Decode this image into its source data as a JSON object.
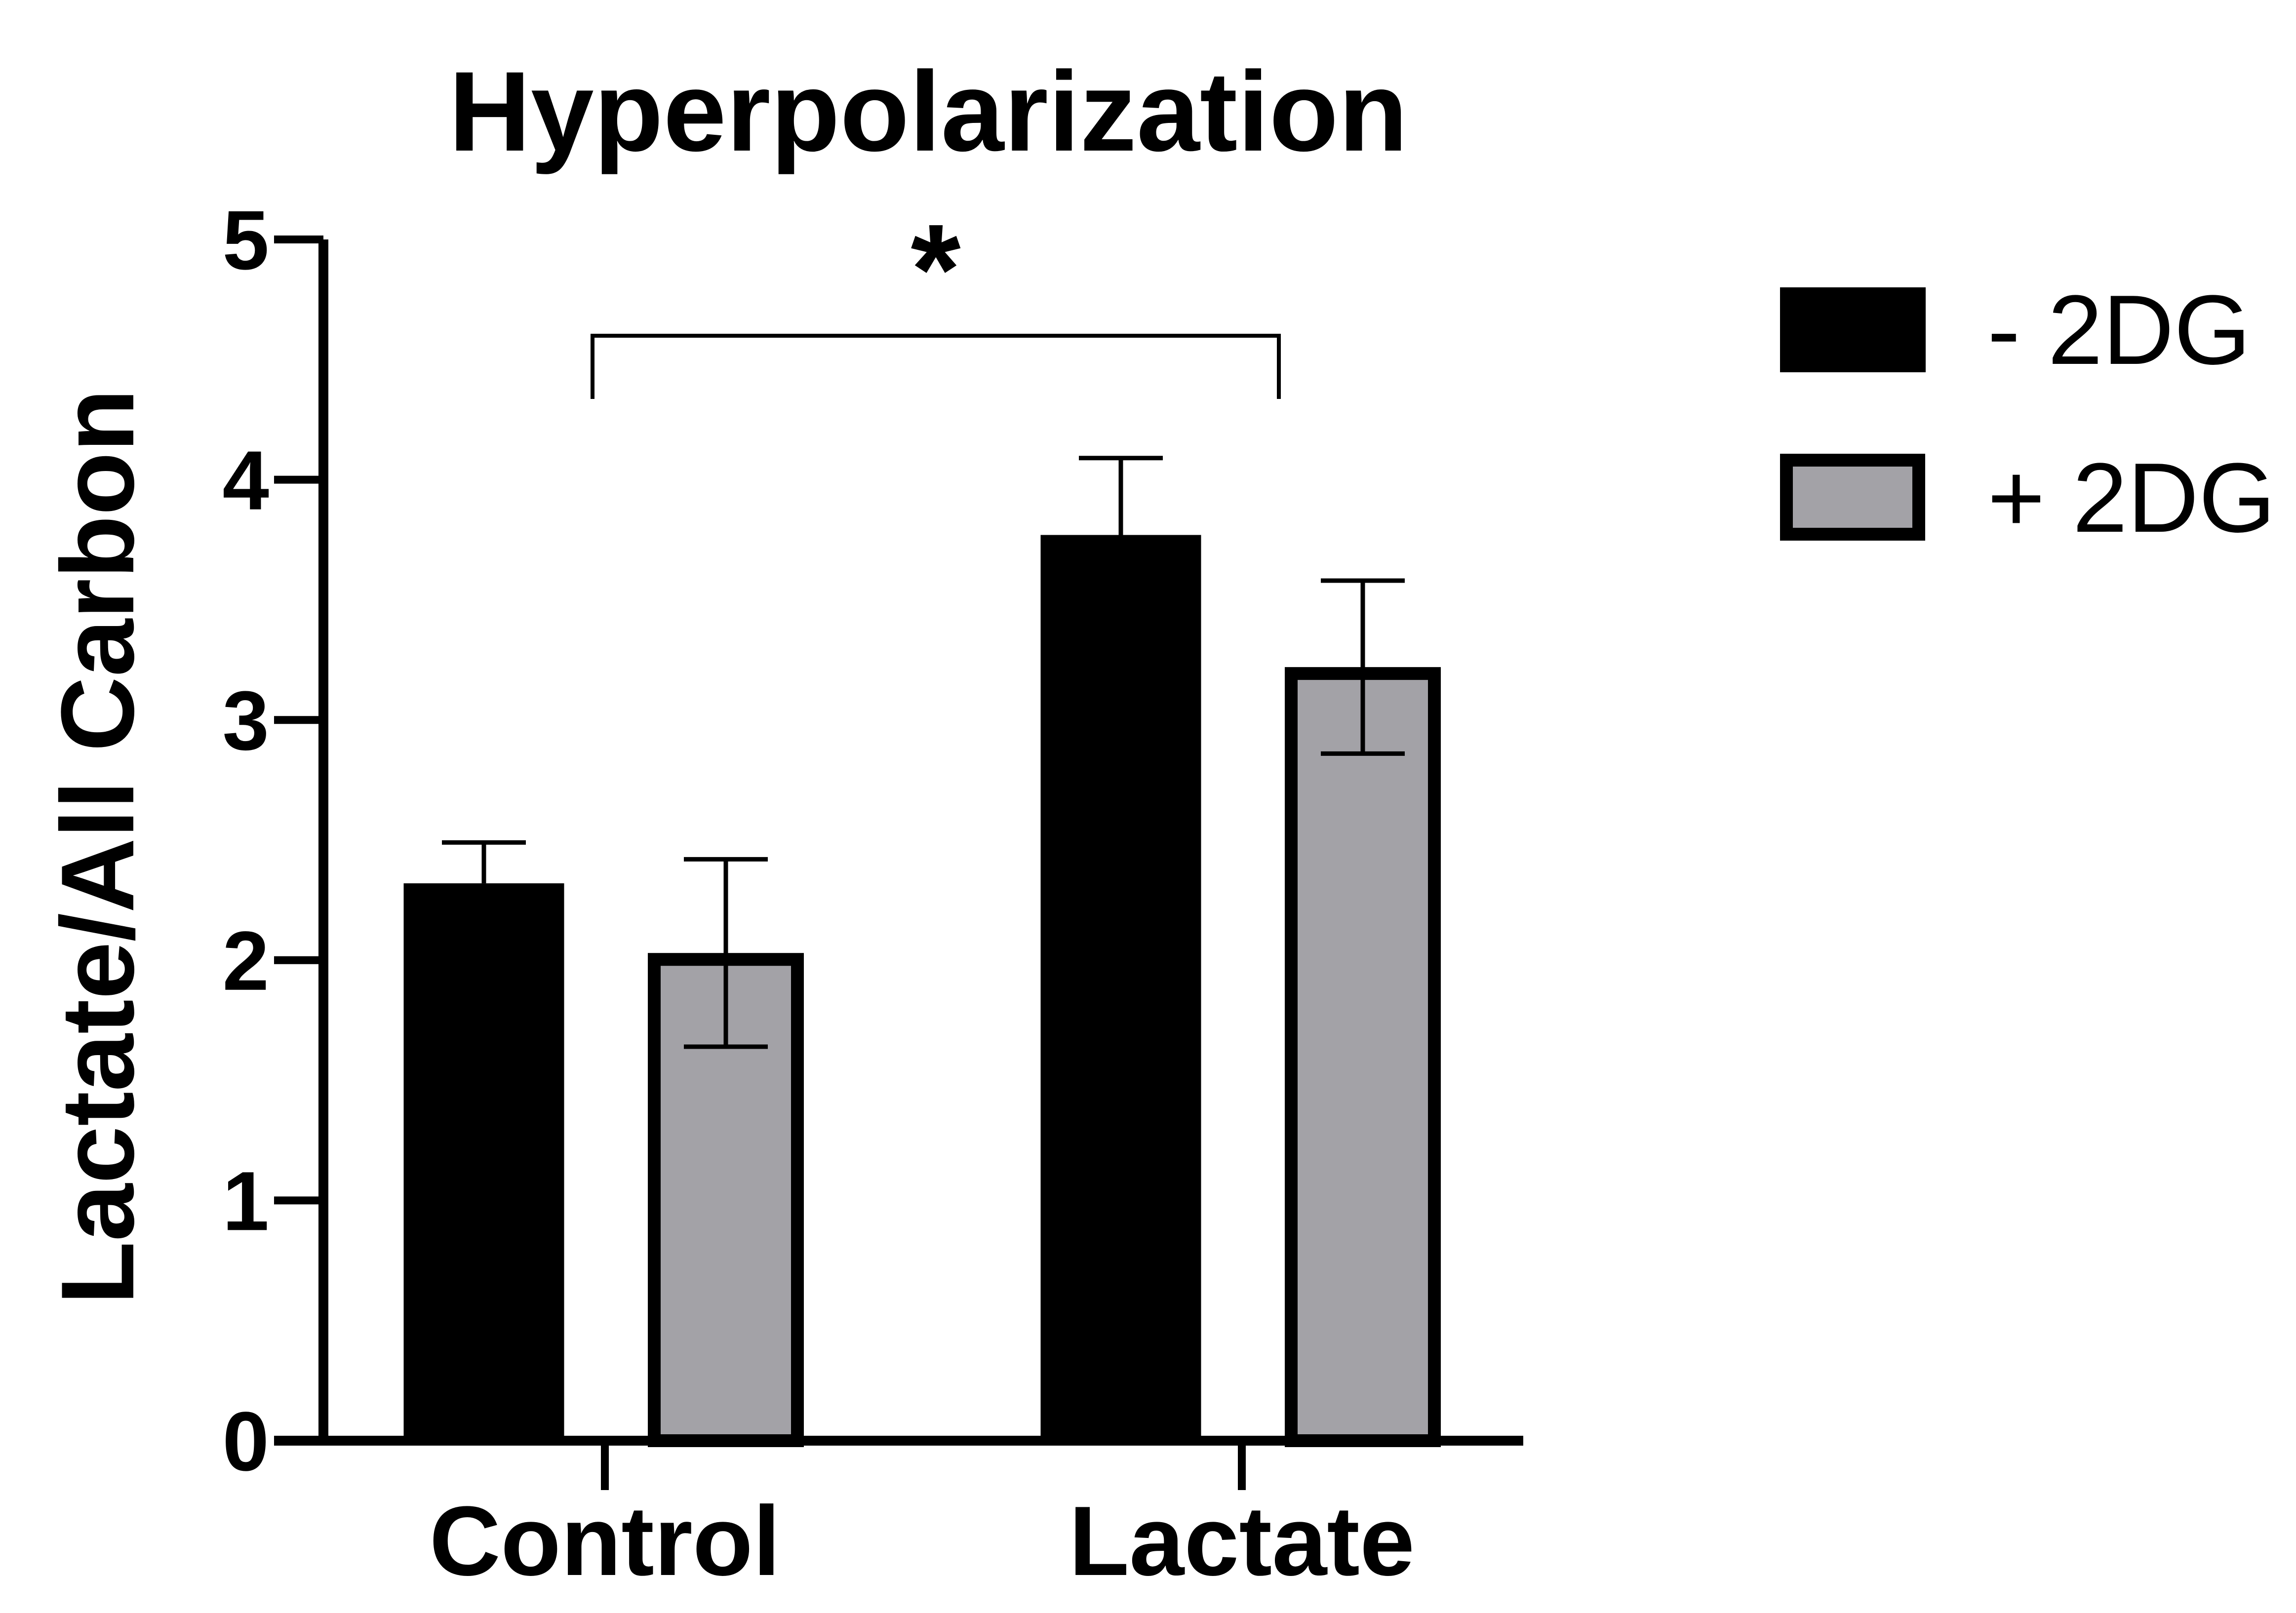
{
  "chart_data": {
    "type": "bar",
    "title": "Hyperpolarization",
    "ylabel": "Lactate/All Carbon",
    "xlabel": "",
    "ylim": [
      0,
      5
    ],
    "yticks": [
      "0",
      "1",
      "2",
      "3",
      "4",
      "5"
    ],
    "categories": [
      "Control",
      "Lactate"
    ],
    "series": [
      {
        "name": "- 2DG",
        "values": [
          2.32,
          3.77
        ],
        "errors": [
          0.17,
          0.32
        ],
        "color": "#000000"
      },
      {
        "name": "+ 2DG",
        "values": [
          2.03,
          3.22
        ],
        "errors": [
          0.39,
          0.36
        ],
        "color": "#a3a2a7"
      }
    ],
    "annotations": [
      {
        "text": "*",
        "between": [
          "Control",
          "Lactate"
        ]
      }
    ],
    "legend_position": "top-right",
    "grid": false
  }
}
